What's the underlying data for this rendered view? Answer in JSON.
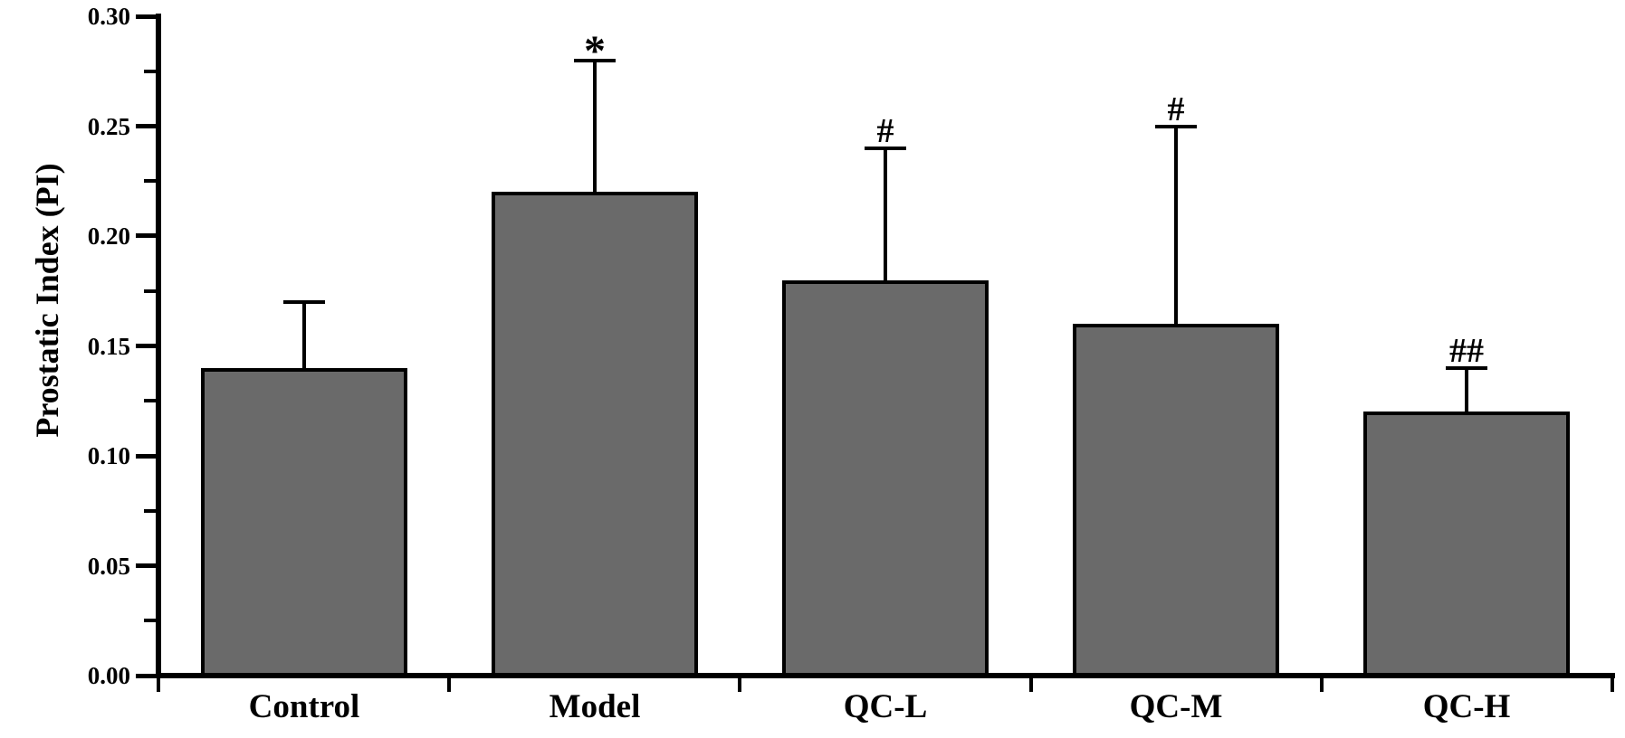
{
  "chart_data": {
    "type": "bar",
    "title": "",
    "xlabel": "",
    "ylabel": "Prostatic Index (PI)",
    "ylim": [
      0,
      0.3
    ],
    "y_major_ticks": [
      0.0,
      0.05,
      0.1,
      0.15,
      0.2,
      0.25,
      0.3
    ],
    "y_tick_labels": [
      "0.00",
      "0.05",
      "0.10",
      "0.15",
      "0.20",
      "0.25",
      "0.30"
    ],
    "y_minor_tick_step": 0.025,
    "categories": [
      "Control",
      "Model",
      "QC-L",
      "QC-M",
      "QC-H"
    ],
    "values": [
      0.14,
      0.22,
      0.18,
      0.16,
      0.12
    ],
    "errors_upper": [
      0.03,
      0.06,
      0.06,
      0.09,
      0.02
    ],
    "significance_markers": [
      "",
      "*",
      "#",
      "#",
      "##"
    ],
    "grid": false,
    "legend": null,
    "bar_color": "#6a6a6a",
    "bar_border_color": "#000000",
    "axis_color": "#000000",
    "text_color": "#000000",
    "background_color": "#ffffff"
  }
}
